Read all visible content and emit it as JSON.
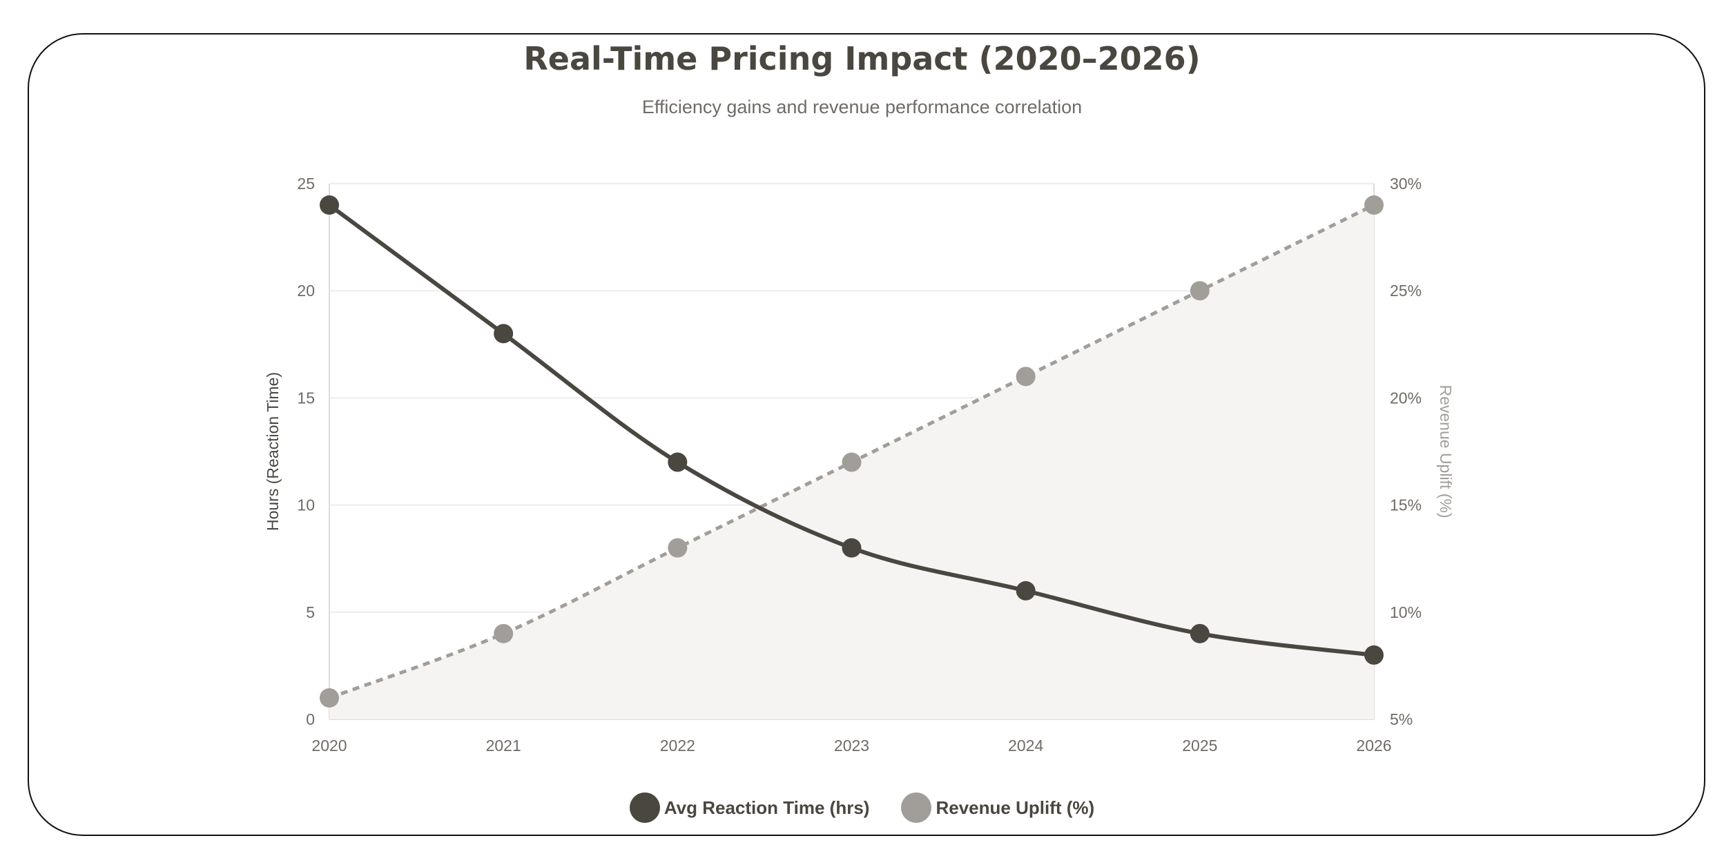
{
  "chart_data": {
    "type": "line",
    "title": "Real-Time Pricing Impact (2020–2026)",
    "subtitle": "Efficiency gains and revenue performance correlation",
    "categories": [
      "2020",
      "2021",
      "2022",
      "2023",
      "2024",
      "2025",
      "2026"
    ],
    "y_left": {
      "label": "Hours (Reaction Time)",
      "range": [
        0,
        25
      ],
      "ticks": [
        "0",
        "5",
        "10",
        "15",
        "20",
        "25"
      ]
    },
    "y_right": {
      "label": "Revenue Uplift (%)",
      "range": [
        5,
        30
      ],
      "ticks": [
        "5%",
        "10%",
        "15%",
        "20%",
        "25%",
        "30%"
      ]
    },
    "grid": true,
    "legend_position": "bottom",
    "series": [
      {
        "name": "Avg Reaction Time (hrs)",
        "axis": "left",
        "values": [
          24,
          18,
          12,
          8,
          6,
          4,
          3
        ],
        "color": "#4a4640",
        "style": "solid"
      },
      {
        "name": "Revenue Uplift (%)",
        "axis": "right",
        "values": [
          6,
          9,
          13,
          17,
          21,
          25,
          29
        ],
        "color": "#a19e9a",
        "style": "dashed",
        "fill": "#f5f4f2"
      }
    ]
  }
}
